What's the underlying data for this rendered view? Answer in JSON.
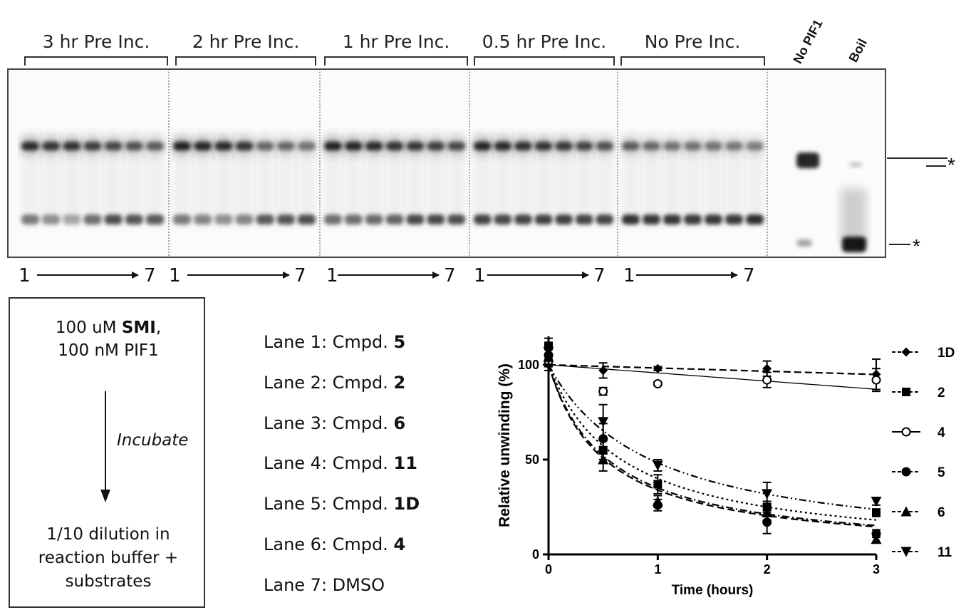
{
  "gel": {
    "group_labels": [
      "3 hr Pre Inc.",
      "2 hr Pre Inc.",
      "1 hr Pre Inc.",
      "0.5 hr Pre Inc.",
      "No Pre Inc."
    ],
    "control_labels": [
      "No PIF1",
      "Boil"
    ],
    "lane_start": "1",
    "lane_end": "7",
    "marker_symbol": "*"
  },
  "protocol": {
    "line1_prefix": "100 uM ",
    "line1_bold": "SMI",
    "line1_suffix": ",",
    "line2": "100 nM PIF1",
    "step": "Incubate",
    "line3": "1/10 dilution in",
    "line4": "reaction buffer +",
    "line5": "substrates"
  },
  "lanes": [
    {
      "prefix": "Lane 1:  Cmpd. ",
      "bold": "5"
    },
    {
      "prefix": "Lane 2:  Cmpd. ",
      "bold": "2"
    },
    {
      "prefix": "Lane 3:  Cmpd. ",
      "bold": "6"
    },
    {
      "prefix": "Lane 4:  Cmpd. ",
      "bold": "11"
    },
    {
      "prefix": "Lane 5:  Cmpd. ",
      "bold": "1D"
    },
    {
      "prefix": "Lane 6:  Cmpd. ",
      "bold": "4"
    },
    {
      "prefix": "Lane 7:  DMSO",
      "bold": ""
    }
  ],
  "chart_data": {
    "type": "scatter",
    "xlabel": "Time (hours)",
    "ylabel": "Relative unwinding (%)",
    "xlim": [
      0,
      3
    ],
    "ylim": [
      0,
      115
    ],
    "x_ticks": [
      "0",
      "1",
      "2",
      "3"
    ],
    "y_ticks": [
      "0",
      "50",
      "100"
    ],
    "legend_position": "right",
    "series": [
      {
        "name": "1D",
        "marker": "diamond",
        "line": "dash",
        "x": [
          0,
          0.5,
          1,
          2,
          3
        ],
        "y": [
          100,
          97,
          98,
          98,
          95
        ],
        "err": [
          3,
          4,
          1,
          4,
          8
        ]
      },
      {
        "name": "2",
        "marker": "square",
        "line": "dot",
        "x": [
          0,
          0.5,
          1,
          2,
          3
        ],
        "y": [
          110,
          55,
          37,
          25,
          22
        ],
        "err": [
          4,
          5,
          5,
          3,
          2
        ]
      },
      {
        "name": "4",
        "marker": "circle-open",
        "line": "solid",
        "x": [
          0,
          0.5,
          1,
          2,
          3
        ],
        "y": [
          102,
          86,
          90,
          92,
          92
        ],
        "err": [
          3,
          2,
          1,
          4,
          6
        ]
      },
      {
        "name": "5",
        "marker": "circle",
        "line": "dash",
        "x": [
          0,
          0.5,
          1,
          2,
          3
        ],
        "y": [
          105,
          61,
          26,
          17,
          11
        ],
        "err": [
          4,
          8,
          3,
          6,
          2
        ]
      },
      {
        "name": "6",
        "marker": "triangle-up",
        "line": "dash-dot",
        "x": [
          0,
          0.5,
          1,
          2,
          3
        ],
        "y": [
          104,
          50,
          28,
          22,
          8
        ],
        "err": [
          4,
          6,
          3,
          4,
          2
        ]
      },
      {
        "name": "11",
        "marker": "triangle-down",
        "line": "dash-dot-dot",
        "x": [
          0,
          0.5,
          1,
          2,
          3
        ],
        "y": [
          107,
          70,
          47,
          32,
          28
        ],
        "err": [
          4,
          9,
          3,
          6,
          2
        ]
      }
    ],
    "fits": {
      "1D": {
        "type": "linear",
        "y0": 100,
        "slope": -1.7
      },
      "4": {
        "type": "linear",
        "y0": 100,
        "slope": -4.3
      },
      "2": {
        "type": "hyper",
        "a": 100,
        "b": 1.5
      },
      "5": {
        "type": "hyper",
        "a": 100,
        "b": 1.95
      },
      "6": {
        "type": "hyper",
        "a": 100,
        "b": 1.85
      },
      "11": {
        "type": "hyper",
        "a": 100,
        "b": 1.07
      }
    }
  }
}
